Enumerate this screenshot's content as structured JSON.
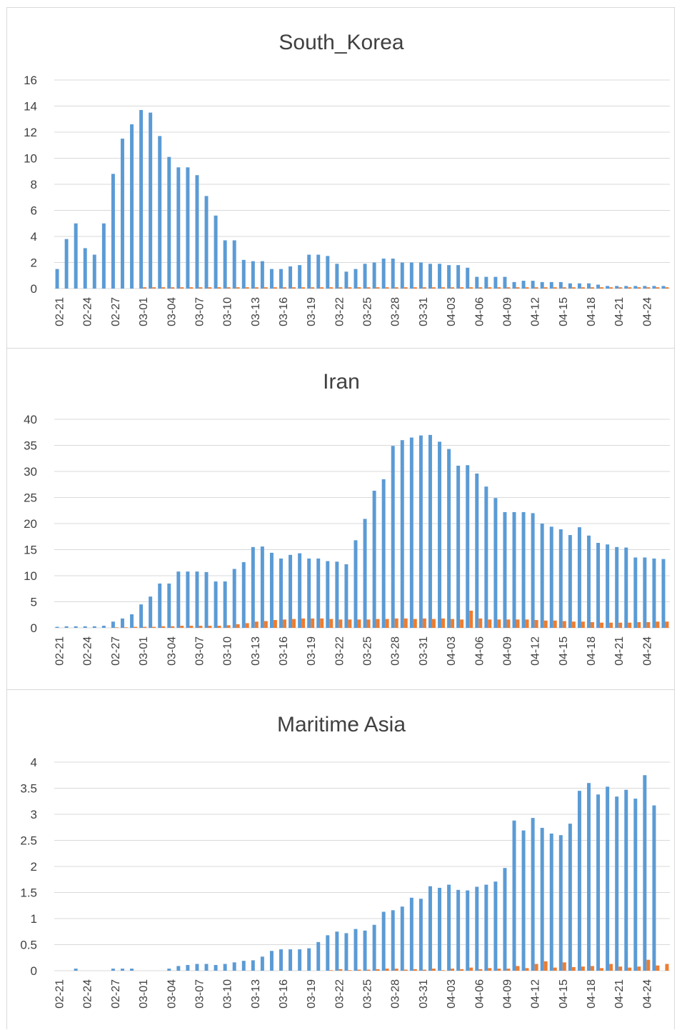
{
  "colors": {
    "series1": "#5b9bd5",
    "series2": "#ed7d31",
    "grid": "#d9d9d9",
    "text": "#404040"
  },
  "chart_data": [
    {
      "type": "bar",
      "title": "South_Korea",
      "xlabel": "",
      "ylabel": "",
      "ylim": [
        0,
        16
      ],
      "yticks": [
        0,
        2,
        4,
        6,
        8,
        10,
        12,
        14,
        16
      ],
      "tick_labels": [
        "02-21",
        "02-24",
        "02-27",
        "03-01",
        "03-04",
        "03-07",
        "03-10",
        "03-13",
        "03-16",
        "03-19",
        "03-22",
        "03-25",
        "03-28",
        "03-31",
        "04-03",
        "04-06",
        "04-09",
        "04-12",
        "04-15",
        "04-18",
        "04-21",
        "04-24"
      ],
      "grid": true,
      "legend": "none",
      "series": [
        {
          "values": [
            1.5,
            3.8,
            5.0,
            3.1,
            2.6,
            5.0,
            8.8,
            11.5,
            12.6,
            13.7,
            13.5,
            11.7,
            10.1,
            9.3,
            9.3,
            8.7,
            7.1,
            5.6,
            3.7,
            3.7,
            2.2,
            2.1,
            2.1,
            1.5,
            1.5,
            1.7,
            1.8,
            2.6,
            2.6,
            2.5,
            1.9,
            1.3,
            1.5,
            1.9,
            2.0,
            2.3,
            2.3,
            2.0,
            2.0,
            2.0,
            1.9,
            1.9,
            1.8,
            1.8,
            1.6,
            0.9,
            0.9,
            0.9,
            0.9,
            0.5,
            0.6,
            0.6,
            0.5,
            0.5,
            0.5,
            0.4,
            0.4,
            0.4,
            0.3,
            0.2,
            0.2,
            0.2,
            0.2,
            0.2,
            0.2,
            0.2
          ]
        },
        {
          "values": [
            0,
            0,
            0,
            0,
            0,
            0,
            0,
            0,
            0,
            0.1,
            0.1,
            0.1,
            0.1,
            0.1,
            0.1,
            0.1,
            0.1,
            0.1,
            0.1,
            0.1,
            0.1,
            0.1,
            0.1,
            0.1,
            0.1,
            0.1,
            0.1,
            0.1,
            0.1,
            0.1,
            0.1,
            0.1,
            0.1,
            0.1,
            0.1,
            0.1,
            0.1,
            0.1,
            0.1,
            0.1,
            0.1,
            0.1,
            0.1,
            0.1,
            0.1,
            0.1,
            0.1,
            0.1,
            0.1,
            0.1,
            0.1,
            0.1,
            0.1,
            0.1,
            0.1,
            0.1,
            0.1,
            0.1,
            0.1,
            0.1,
            0.1,
            0.1,
            0.1,
            0.1,
            0.1,
            0.1
          ]
        }
      ]
    },
    {
      "type": "bar",
      "title": "Iran",
      "xlabel": "",
      "ylabel": "",
      "ylim": [
        0,
        40
      ],
      "yticks": [
        0,
        5,
        10,
        15,
        20,
        25,
        30,
        35,
        40
      ],
      "tick_labels": [
        "02-21",
        "02-24",
        "02-27",
        "03-01",
        "03-04",
        "03-07",
        "03-10",
        "03-13",
        "03-16",
        "03-19",
        "03-22",
        "03-25",
        "03-28",
        "03-31",
        "04-03",
        "04-06",
        "04-09",
        "04-12",
        "04-15",
        "04-18",
        "04-21",
        "04-24"
      ],
      "grid": true,
      "legend": "none",
      "series": [
        {
          "values": [
            0.2,
            0.3,
            0.3,
            0.3,
            0.3,
            0.4,
            1.2,
            1.8,
            2.6,
            4.5,
            6.0,
            8.5,
            8.5,
            10.8,
            10.8,
            10.8,
            10.7,
            8.9,
            8.9,
            11.3,
            12.6,
            15.5,
            15.6,
            14.4,
            13.3,
            14.0,
            14.3,
            13.3,
            13.3,
            12.8,
            12.7,
            12.2,
            16.8,
            20.9,
            26.3,
            28.5,
            34.9,
            36.0,
            36.5,
            36.9,
            37.0,
            35.7,
            34.3,
            31.1,
            31.2,
            29.6,
            27.1,
            24.9,
            22.2,
            22.2,
            22.2,
            22.0,
            20.0,
            19.4,
            18.9,
            17.8,
            19.3,
            17.7,
            16.3,
            16.0,
            15.5,
            15.4,
            13.5,
            13.5,
            13.3,
            13.2
          ]
        },
        {
          "values": [
            0,
            0,
            0,
            0,
            0,
            0,
            0.1,
            0.1,
            0.2,
            0.2,
            0.2,
            0.3,
            0.3,
            0.4,
            0.4,
            0.4,
            0.4,
            0.4,
            0.5,
            0.7,
            0.9,
            1.2,
            1.3,
            1.5,
            1.6,
            1.7,
            1.8,
            1.8,
            1.8,
            1.7,
            1.6,
            1.6,
            1.6,
            1.6,
            1.7,
            1.7,
            1.8,
            1.8,
            1.7,
            1.8,
            1.7,
            1.8,
            1.7,
            1.6,
            3.3,
            1.8,
            1.6,
            1.6,
            1.6,
            1.6,
            1.6,
            1.5,
            1.4,
            1.4,
            1.3,
            1.2,
            1.2,
            1.1,
            1.0,
            1.0,
            1.0,
            1.0,
            1.1,
            1.1,
            1.2,
            1.2
          ]
        }
      ]
    },
    {
      "type": "bar",
      "title": "Maritime Asia",
      "xlabel": "",
      "ylabel": "",
      "ylim": [
        0,
        4
      ],
      "yticks": [
        0,
        0.5,
        1,
        1.5,
        2,
        2.5,
        3,
        3.5,
        4
      ],
      "tick_labels": [
        "02-21",
        "02-24",
        "02-27",
        "03-01",
        "03-04",
        "03-07",
        "03-10",
        "03-13",
        "03-16",
        "03-19",
        "03-22",
        "03-25",
        "03-28",
        "03-31",
        "04-03",
        "04-06",
        "04-09",
        "04-12",
        "04-15",
        "04-18",
        "04-21",
        "04-24"
      ],
      "grid": true,
      "legend": "none",
      "series": [
        {
          "values": [
            0,
            0,
            0.04,
            0,
            0,
            0,
            0.04,
            0.04,
            0.04,
            0,
            0,
            0,
            0.04,
            0.09,
            0.11,
            0.13,
            0.13,
            0.11,
            0.13,
            0.16,
            0.19,
            0.2,
            0.27,
            0.38,
            0.41,
            0.41,
            0.41,
            0.43,
            0.55,
            0.68,
            0.75,
            0.72,
            0.8,
            0.77,
            0.88,
            1.13,
            1.16,
            1.23,
            1.4,
            1.38,
            1.62,
            1.59,
            1.65,
            1.55,
            1.54,
            1.61,
            1.65,
            1.71,
            1.97,
            2.88,
            2.69,
            2.93,
            2.74,
            2.63,
            2.6,
            2.82,
            3.45,
            3.6,
            3.38,
            3.53,
            3.34,
            3.47,
            3.3,
            3.75,
            3.17,
            0
          ]
        },
        {
          "values": [
            0,
            0,
            0,
            0,
            0,
            0,
            0,
            0,
            0,
            0,
            0,
            0,
            0,
            0,
            0,
            0,
            0,
            0,
            0,
            0,
            0,
            0,
            0,
            0,
            0,
            0,
            0,
            0,
            0,
            0.01,
            0.03,
            0.01,
            0.02,
            0.02,
            0.03,
            0.04,
            0.04,
            0.02,
            0.03,
            0.02,
            0.04,
            0.01,
            0.04,
            0.03,
            0.06,
            0.03,
            0.05,
            0.04,
            0.04,
            0.09,
            0.05,
            0.13,
            0.18,
            0.06,
            0.16,
            0.07,
            0.08,
            0.09,
            0.05,
            0.13,
            0.08,
            0.06,
            0.08,
            0.21,
            0.1,
            0.13
          ]
        }
      ]
    }
  ]
}
